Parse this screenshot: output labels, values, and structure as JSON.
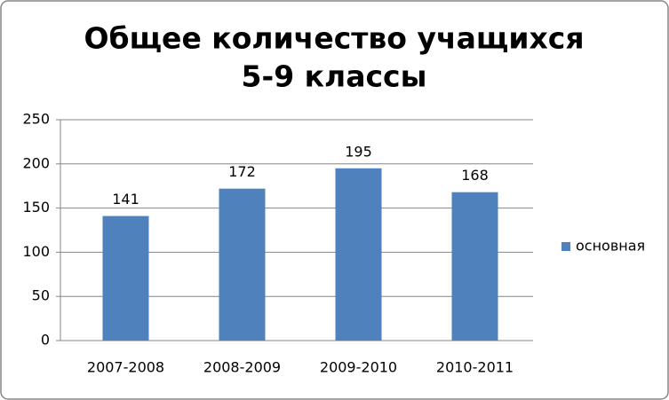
{
  "chart_data": {
    "type": "bar",
    "title": [
      "Общее количество учащихся",
      "5-9 классы"
    ],
    "categories": [
      "2007-2008",
      "2008-2009",
      "2009-2010",
      "2010-2011"
    ],
    "series": [
      {
        "name": "основная",
        "color": "#4f81bd",
        "values": [
          141,
          172,
          195,
          168
        ]
      }
    ],
    "ylim": [
      0,
      250
    ],
    "yticks": [
      0,
      50,
      100,
      150,
      200,
      250
    ],
    "grid": true,
    "legend": "right"
  }
}
